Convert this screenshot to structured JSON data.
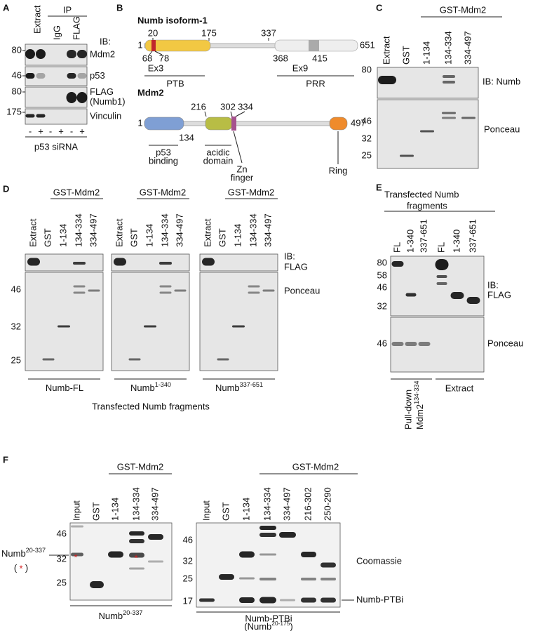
{
  "A": {
    "label": "A",
    "extract": "Extract",
    "ip": "IP",
    "igg": "IgG",
    "flag": "FLAG",
    "ib": "IB:",
    "rows": [
      {
        "marker": "80",
        "name": [
          "Mdm2"
        ]
      },
      {
        "marker": "46",
        "name": [
          "p53"
        ]
      },
      {
        "marker": "80",
        "name": [
          "FLAG",
          "(Numb1)"
        ]
      },
      {
        "marker": "175",
        "name": [
          "Vinculin"
        ]
      }
    ],
    "signs": [
      "-",
      "+",
      "-",
      "+",
      "-",
      "+"
    ],
    "footer": "p53 siRNA"
  },
  "B": {
    "label": "B",
    "numb": {
      "title": "Numb isoform-1",
      "positions": {
        "start": "1",
        "ptb_start": "20",
        "ptb_end": "175",
        "prr_start": "337",
        "end": "651",
        "ex3_start": "68",
        "ex3_end": "78",
        "ex9_start": "368",
        "ex9_end": "415"
      },
      "ex3": "Ex3",
      "ex9": "Ex9",
      "ptb": "PTB",
      "prr": "PRR"
    },
    "mdm2": {
      "title": "Mdm2",
      "positions": {
        "start": "1",
        "p53_end": "134",
        "acidic_start": "216",
        "zn_start": "302",
        "zn_end": "334",
        "end": "497"
      },
      "domains": {
        "p53": [
          "p53",
          "binding"
        ],
        "acidic": [
          "acidic",
          "domain"
        ],
        "zn": [
          "Zn",
          "finger"
        ],
        "ring": [
          "Ring"
        ]
      }
    }
  },
  "C": {
    "label": "C",
    "header": "GST-Mdm2",
    "lanes": [
      "Extract",
      "GST",
      "1-134",
      "134-334",
      "334-497"
    ],
    "ib_markers": [
      "80"
    ],
    "ib": "IB: Numb",
    "stain_markers": [
      "46",
      "32",
      "25"
    ],
    "stain": "Ponceau"
  },
  "D": {
    "label": "D",
    "panels": [
      {
        "header": "GST-Mdm2",
        "lanes": [
          "Extract",
          "GST",
          "1-134",
          "134-334",
          "334-497"
        ],
        "footer": {
          "text": "Numb-FL"
        }
      },
      {
        "header": "GST-Mdm2",
        "lanes": [
          "Extract",
          "GST",
          "1-134",
          "134-334",
          "334-497"
        ],
        "footer": {
          "text": "Numb",
          "sup": "1-340"
        }
      },
      {
        "header": "GST-Mdm2",
        "lanes": [
          "Extract",
          "GST",
          "1-134",
          "134-334",
          "334-497"
        ],
        "footer": {
          "text": "Numb",
          "sup": "337-651"
        }
      }
    ],
    "stain_markers": [
      "46",
      "32",
      "25"
    ],
    "ib": [
      "IB:",
      "FLAG"
    ],
    "stain": "Ponceau",
    "footer": "Transfected Numb fragments"
  },
  "E": {
    "label": "E",
    "title": [
      "Transfected Numb",
      "fragments"
    ],
    "lanes": [
      "FL",
      "1-340",
      "337-651",
      "FL",
      "1-340",
      "337-651"
    ],
    "ib_markers": [
      "80",
      "58",
      "46",
      "32"
    ],
    "ib": [
      "IB:",
      "FLAG"
    ],
    "stain_markers": [
      "46"
    ],
    "stain": "Ponceau",
    "groups": {
      "pulldown": {
        "line1": "Pull-down",
        "line2": {
          "text": "Mdm2",
          "sup": "134-334"
        }
      },
      "extract": "Extract"
    }
  },
  "F": {
    "label": "F",
    "left": {
      "header": "GST-Mdm2",
      "lanes": [
        "Input",
        "GST",
        "1-134",
        "134-334",
        "334-497"
      ],
      "markers": [
        "46",
        "32",
        "25"
      ],
      "side_label": {
        "text": "Numb",
        "sup": "20-337"
      },
      "side_note": [
        "(",
        "*",
        ")"
      ],
      "footer": {
        "text": "Numb",
        "sup": "20-337"
      }
    },
    "right": {
      "header": "GST-Mdm2",
      "lanes": [
        "Input",
        "GST",
        "1-134",
        "134-334",
        "334-497",
        "216-302",
        "250-290"
      ],
      "markers": [
        "46",
        "32",
        "25",
        "17"
      ],
      "stain": "Coomassie",
      "band_label": "Numb-PTBi",
      "footer": [
        "Numb-PTBi",
        {
          "text": "(Numb",
          "sup": "20-175",
          "tail": ")"
        }
      ]
    }
  }
}
